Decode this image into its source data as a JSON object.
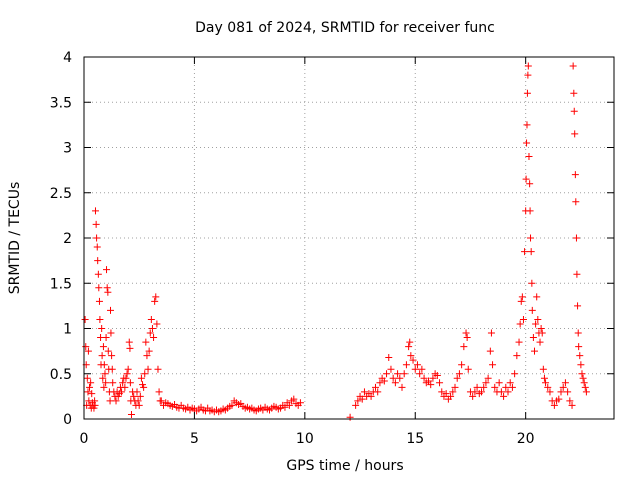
{
  "chart_data": {
    "type": "scatter",
    "title": "Day 081 of 2024, SRMTID for receiver func",
    "xlabel": "GPS time / hours",
    "ylabel": "SRMTID / TECUs",
    "xlim": [
      0,
      24
    ],
    "ylim": [
      0,
      4
    ],
    "x_ticks": [
      0,
      5,
      10,
      15,
      20
    ],
    "x_tick_labels": [
      "0",
      "5",
      "10",
      "15",
      "20"
    ],
    "y_ticks": [
      0,
      0.5,
      1,
      1.5,
      2,
      2.5,
      3,
      3.5,
      4
    ],
    "y_tick_labels": [
      "0",
      "0.5",
      "1",
      "1.5",
      "2",
      "2.5",
      "3",
      "3.5",
      "4"
    ],
    "grid": true,
    "marker": "+",
    "color": "#ff0000",
    "series": [
      {
        "name": "SRMTID",
        "points": [
          [
            0.05,
            1.1
          ],
          [
            0.08,
            0.8
          ],
          [
            0.1,
            0.6
          ],
          [
            0.12,
            0.15
          ],
          [
            0.15,
            0.45
          ],
          [
            0.18,
            0.3
          ],
          [
            0.2,
            0.75
          ],
          [
            0.22,
            0.2
          ],
          [
            0.25,
            0.35
          ],
          [
            0.28,
            0.15
          ],
          [
            0.3,
            0.4
          ],
          [
            0.33,
            0.12
          ],
          [
            0.35,
            0.28
          ],
          [
            0.38,
            0.18
          ],
          [
            0.4,
            0.15
          ],
          [
            0.45,
            0.12
          ],
          [
            0.48,
            0.2
          ],
          [
            0.5,
            0.15
          ],
          [
            0.52,
            2.3
          ],
          [
            0.55,
            2.15
          ],
          [
            0.57,
            2.0
          ],
          [
            0.6,
            1.9
          ],
          [
            0.62,
            1.75
          ],
          [
            0.65,
            1.6
          ],
          [
            0.67,
            1.45
          ],
          [
            0.7,
            1.3
          ],
          [
            0.72,
            1.1
          ],
          [
            0.75,
            0.9
          ],
          [
            0.77,
            0.6
          ],
          [
            0.8,
            1.0
          ],
          [
            0.82,
            0.7
          ],
          [
            0.85,
            0.45
          ],
          [
            0.88,
            0.8
          ],
          [
            0.9,
            0.35
          ],
          [
            0.92,
            0.6
          ],
          [
            0.95,
            0.5
          ],
          [
            0.98,
            0.4
          ],
          [
            1.0,
            0.9
          ],
          [
            1.02,
            1.65
          ],
          [
            1.05,
            1.45
          ],
          [
            1.08,
            1.4
          ],
          [
            1.1,
            0.75
          ],
          [
            1.12,
            0.55
          ],
          [
            1.15,
            0.3
          ],
          [
            1.18,
            0.2
          ],
          [
            1.2,
            1.2
          ],
          [
            1.22,
            0.95
          ],
          [
            1.25,
            0.7
          ],
          [
            1.28,
            0.55
          ],
          [
            1.3,
            0.4
          ],
          [
            1.35,
            0.3
          ],
          [
            1.4,
            0.25
          ],
          [
            1.45,
            0.2
          ],
          [
            1.5,
            0.3
          ],
          [
            1.55,
            0.25
          ],
          [
            1.6,
            0.28
          ],
          [
            1.65,
            0.35
          ],
          [
            1.7,
            0.3
          ],
          [
            1.75,
            0.4
          ],
          [
            1.8,
            0.45
          ],
          [
            1.85,
            0.35
          ],
          [
            1.9,
            0.45
          ],
          [
            1.95,
            0.5
          ],
          [
            2.0,
            0.55
          ],
          [
            2.05,
            0.85
          ],
          [
            2.08,
            0.78
          ],
          [
            2.1,
            0.4
          ],
          [
            2.12,
            0.2
          ],
          [
            2.15,
            0.05
          ],
          [
            2.2,
            0.3
          ],
          [
            2.25,
            0.25
          ],
          [
            2.3,
            0.2
          ],
          [
            2.35,
            0.15
          ],
          [
            2.4,
            0.3
          ],
          [
            2.45,
            0.2
          ],
          [
            2.5,
            0.15
          ],
          [
            2.55,
            0.25
          ],
          [
            2.6,
            0.45
          ],
          [
            2.65,
            0.38
          ],
          [
            2.7,
            0.35
          ],
          [
            2.75,
            0.5
          ],
          [
            2.8,
            0.85
          ],
          [
            2.85,
            0.7
          ],
          [
            2.9,
            0.55
          ],
          [
            2.95,
            0.75
          ],
          [
            3.0,
            0.95
          ],
          [
            3.05,
            1.1
          ],
          [
            3.1,
            1.0
          ],
          [
            3.15,
            0.9
          ],
          [
            3.2,
            1.3
          ],
          [
            3.25,
            1.35
          ],
          [
            3.3,
            1.05
          ],
          [
            3.35,
            0.55
          ],
          [
            3.4,
            0.3
          ],
          [
            3.45,
            0.2
          ],
          [
            3.5,
            0.2
          ],
          [
            3.6,
            0.15
          ],
          [
            3.7,
            0.18
          ],
          [
            3.8,
            0.17
          ],
          [
            3.9,
            0.15
          ],
          [
            4.0,
            0.14
          ],
          [
            4.1,
            0.16
          ],
          [
            4.2,
            0.13
          ],
          [
            4.3,
            0.12
          ],
          [
            4.4,
            0.15
          ],
          [
            4.5,
            0.12
          ],
          [
            4.6,
            0.11
          ],
          [
            4.7,
            0.13
          ],
          [
            4.8,
            0.1
          ],
          [
            4.9,
            0.12
          ],
          [
            5.0,
            0.11
          ],
          [
            5.1,
            0.09
          ],
          [
            5.2,
            0.11
          ],
          [
            5.3,
            0.13
          ],
          [
            5.4,
            0.1
          ],
          [
            5.5,
            0.09
          ],
          [
            5.6,
            0.12
          ],
          [
            5.7,
            0.09
          ],
          [
            5.8,
            0.1
          ],
          [
            5.9,
            0.08
          ],
          [
            6.0,
            0.1
          ],
          [
            6.1,
            0.08
          ],
          [
            6.2,
            0.09
          ],
          [
            6.3,
            0.11
          ],
          [
            6.4,
            0.1
          ],
          [
            6.5,
            0.12
          ],
          [
            6.6,
            0.14
          ],
          [
            6.7,
            0.15
          ],
          [
            6.8,
            0.2
          ],
          [
            6.9,
            0.18
          ],
          [
            7.0,
            0.16
          ],
          [
            7.1,
            0.17
          ],
          [
            7.2,
            0.14
          ],
          [
            7.3,
            0.12
          ],
          [
            7.4,
            0.13
          ],
          [
            7.5,
            0.11
          ],
          [
            7.6,
            0.12
          ],
          [
            7.7,
            0.1
          ],
          [
            7.8,
            0.09
          ],
          [
            7.9,
            0.11
          ],
          [
            8.0,
            0.12
          ],
          [
            8.1,
            0.1
          ],
          [
            8.2,
            0.13
          ],
          [
            8.3,
            0.11
          ],
          [
            8.4,
            0.1
          ],
          [
            8.5,
            0.12
          ],
          [
            8.6,
            0.14
          ],
          [
            8.7,
            0.13
          ],
          [
            8.8,
            0.11
          ],
          [
            8.9,
            0.12
          ],
          [
            9.0,
            0.15
          ],
          [
            9.1,
            0.13
          ],
          [
            9.2,
            0.18
          ],
          [
            9.3,
            0.15
          ],
          [
            9.4,
            0.2
          ],
          [
            9.5,
            0.22
          ],
          [
            9.6,
            0.17
          ],
          [
            9.7,
            0.15
          ],
          [
            9.8,
            0.18
          ],
          [
            12.05,
            0.02
          ],
          [
            12.3,
            0.15
          ],
          [
            12.4,
            0.2
          ],
          [
            12.5,
            0.25
          ],
          [
            12.6,
            0.22
          ],
          [
            12.7,
            0.3
          ],
          [
            12.8,
            0.25
          ],
          [
            12.9,
            0.28
          ],
          [
            13.0,
            0.25
          ],
          [
            13.1,
            0.3
          ],
          [
            13.2,
            0.35
          ],
          [
            13.3,
            0.3
          ],
          [
            13.4,
            0.4
          ],
          [
            13.5,
            0.45
          ],
          [
            13.6,
            0.42
          ],
          [
            13.7,
            0.5
          ],
          [
            13.8,
            0.68
          ],
          [
            13.9,
            0.55
          ],
          [
            14.0,
            0.45
          ],
          [
            14.1,
            0.4
          ],
          [
            14.2,
            0.5
          ],
          [
            14.3,
            0.45
          ],
          [
            14.4,
            0.35
          ],
          [
            14.5,
            0.5
          ],
          [
            14.6,
            0.6
          ],
          [
            14.7,
            0.8
          ],
          [
            14.75,
            0.85
          ],
          [
            14.8,
            0.7
          ],
          [
            14.9,
            0.65
          ],
          [
            15.0,
            0.55
          ],
          [
            15.1,
            0.6
          ],
          [
            15.2,
            0.5
          ],
          [
            15.3,
            0.55
          ],
          [
            15.4,
            0.45
          ],
          [
            15.5,
            0.4
          ],
          [
            15.6,
            0.42
          ],
          [
            15.7,
            0.38
          ],
          [
            15.8,
            0.45
          ],
          [
            15.9,
            0.5
          ],
          [
            16.0,
            0.48
          ],
          [
            16.1,
            0.4
          ],
          [
            16.2,
            0.3
          ],
          [
            16.3,
            0.25
          ],
          [
            16.4,
            0.28
          ],
          [
            16.5,
            0.22
          ],
          [
            16.6,
            0.25
          ],
          [
            16.7,
            0.3
          ],
          [
            16.8,
            0.35
          ],
          [
            16.9,
            0.45
          ],
          [
            17.0,
            0.5
          ],
          [
            17.1,
            0.6
          ],
          [
            17.2,
            0.8
          ],
          [
            17.3,
            0.95
          ],
          [
            17.35,
            0.9
          ],
          [
            17.4,
            0.55
          ],
          [
            17.5,
            0.3
          ],
          [
            17.6,
            0.25
          ],
          [
            17.7,
            0.3
          ],
          [
            17.8,
            0.35
          ],
          [
            17.9,
            0.28
          ],
          [
            18.0,
            0.3
          ],
          [
            18.1,
            0.35
          ],
          [
            18.2,
            0.4
          ],
          [
            18.3,
            0.45
          ],
          [
            18.4,
            0.75
          ],
          [
            18.45,
            0.95
          ],
          [
            18.5,
            0.6
          ],
          [
            18.6,
            0.35
          ],
          [
            18.7,
            0.3
          ],
          [
            18.8,
            0.4
          ],
          [
            18.9,
            0.3
          ],
          [
            19.0,
            0.25
          ],
          [
            19.1,
            0.35
          ],
          [
            19.2,
            0.3
          ],
          [
            19.3,
            0.4
          ],
          [
            19.4,
            0.35
          ],
          [
            19.5,
            0.5
          ],
          [
            19.6,
            0.7
          ],
          [
            19.7,
            0.85
          ],
          [
            19.75,
            1.05
          ],
          [
            19.8,
            1.3
          ],
          [
            19.85,
            1.35
          ],
          [
            19.9,
            1.1
          ],
          [
            19.95,
            1.85
          ],
          [
            20.0,
            2.3
          ],
          [
            20.02,
            2.65
          ],
          [
            20.04,
            3.05
          ],
          [
            20.06,
            3.25
          ],
          [
            20.08,
            3.6
          ],
          [
            20.1,
            3.8
          ],
          [
            20.12,
            3.9
          ],
          [
            20.15,
            2.9
          ],
          [
            20.18,
            2.6
          ],
          [
            20.2,
            2.3
          ],
          [
            20.22,
            2.0
          ],
          [
            20.25,
            1.85
          ],
          [
            20.28,
            1.5
          ],
          [
            20.3,
            1.2
          ],
          [
            20.35,
            0.9
          ],
          [
            20.4,
            0.75
          ],
          [
            20.45,
            1.05
          ],
          [
            20.5,
            1.35
          ],
          [
            20.55,
            1.1
          ],
          [
            20.6,
            0.95
          ],
          [
            20.65,
            0.85
          ],
          [
            20.7,
            1.0
          ],
          [
            20.75,
            0.95
          ],
          [
            20.8,
            0.55
          ],
          [
            20.85,
            0.45
          ],
          [
            20.9,
            0.4
          ],
          [
            21.0,
            0.35
          ],
          [
            21.1,
            0.3
          ],
          [
            21.2,
            0.2
          ],
          [
            21.3,
            0.15
          ],
          [
            21.4,
            0.2
          ],
          [
            21.5,
            0.22
          ],
          [
            21.6,
            0.3
          ],
          [
            21.7,
            0.35
          ],
          [
            21.8,
            0.4
          ],
          [
            21.9,
            0.3
          ],
          [
            22.0,
            0.2
          ],
          [
            22.1,
            0.15
          ],
          [
            22.15,
            3.9
          ],
          [
            22.18,
            3.6
          ],
          [
            22.2,
            3.4
          ],
          [
            22.22,
            3.15
          ],
          [
            22.25,
            2.7
          ],
          [
            22.27,
            2.4
          ],
          [
            22.3,
            2.0
          ],
          [
            22.32,
            1.6
          ],
          [
            22.35,
            1.25
          ],
          [
            22.38,
            0.95
          ],
          [
            22.4,
            0.8
          ],
          [
            22.45,
            0.7
          ],
          [
            22.5,
            0.6
          ],
          [
            22.55,
            0.5
          ],
          [
            22.6,
            0.45
          ],
          [
            22.65,
            0.4
          ],
          [
            22.7,
            0.35
          ],
          [
            22.75,
            0.3
          ]
        ]
      }
    ]
  }
}
